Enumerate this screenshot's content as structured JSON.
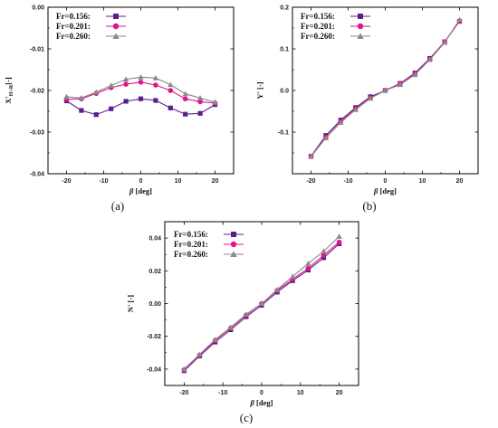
{
  "colors": {
    "fr0156": "#5b1f8c",
    "fr0201": "#e0148c",
    "fr0260": "#8a8a8a"
  },
  "chart_data": [
    {
      "type": "line",
      "panel_label": "(a)",
      "xlabel_sym": "β",
      "xlabel_unit": " [deg]",
      "ylabel_main": "X'",
      "ylabel_sub": "H+R",
      "ylabel_unit": "[-]",
      "xlim": [
        -25,
        25
      ],
      "ylim": [
        -0.04,
        0.0
      ],
      "xticks": [
        -20,
        -10,
        0,
        10,
        20
      ],
      "xtick_labels": [
        "-20",
        "-10",
        "0",
        "10",
        "20"
      ],
      "yticks": [
        -0.04,
        -0.03,
        -0.02,
        -0.01,
        0.0
      ],
      "ytick_labels": [
        "-0.04",
        "-0.03",
        "-0.02",
        "-0.01",
        "0.00"
      ],
      "legend_position": "top-left",
      "x": [
        -20,
        -16,
        -12,
        -8,
        -4,
        0,
        4,
        8,
        12,
        16,
        20
      ],
      "series": [
        {
          "name": "Fr=0.156:",
          "marker": "square",
          "values": [
            -0.0225,
            -0.0248,
            -0.0258,
            -0.0244,
            -0.0226,
            -0.022,
            -0.0224,
            -0.0242,
            -0.0257,
            -0.0255,
            -0.0234
          ]
        },
        {
          "name": "Fr=0.201:",
          "marker": "circle",
          "values": [
            -0.0221,
            -0.022,
            -0.0207,
            -0.0193,
            -0.0185,
            -0.018,
            -0.0187,
            -0.02,
            -0.022,
            -0.0227,
            -0.023
          ]
        },
        {
          "name": "Fr=0.260:",
          "marker": "triangle",
          "values": [
            -0.0215,
            -0.0218,
            -0.0204,
            -0.0188,
            -0.0173,
            -0.0168,
            -0.017,
            -0.0186,
            -0.0208,
            -0.0218,
            -0.0228
          ]
        }
      ]
    },
    {
      "type": "line",
      "panel_label": "(b)",
      "xlabel_sym": "β",
      "xlabel_unit": " [deg]",
      "ylabel_main": "Y'",
      "ylabel_sub": "",
      "ylabel_unit": "[-]",
      "xlim": [
        -25,
        25
      ],
      "ylim": [
        -0.2,
        0.2
      ],
      "xticks": [
        -20,
        -10,
        0,
        10,
        20
      ],
      "xtick_labels": [
        "-20",
        "-10",
        "0",
        "10",
        "20"
      ],
      "yticks": [
        -0.2,
        -0.1,
        0.0,
        0.1,
        0.2
      ],
      "ytick_labels": [
        "",
        "-0.1",
        "0.0",
        "0.1",
        "0.2"
      ],
      "legend_position": "top-left",
      "x": [
        -20,
        -16,
        -12,
        -8,
        -4,
        0,
        4,
        8,
        12,
        16,
        20
      ],
      "series": [
        {
          "name": "Fr=0.156:",
          "marker": "square",
          "values": [
            -0.158,
            -0.108,
            -0.071,
            -0.041,
            -0.015,
            0.0,
            0.017,
            0.042,
            0.077,
            0.117,
            0.166
          ]
        },
        {
          "name": "Fr=0.201:",
          "marker": "circle",
          "values": [
            -0.158,
            -0.113,
            -0.075,
            -0.044,
            -0.018,
            0.0,
            0.016,
            0.04,
            0.075,
            0.117,
            0.167
          ]
        },
        {
          "name": "Fr=0.260:",
          "marker": "triangle",
          "values": [
            -0.159,
            -0.114,
            -0.077,
            -0.046,
            -0.019,
            0.0,
            0.014,
            0.038,
            0.074,
            0.115,
            0.17
          ]
        }
      ]
    },
    {
      "type": "line",
      "panel_label": "(c)",
      "xlabel_sym": "β",
      "xlabel_unit": " [deg]",
      "ylabel_main": "N'",
      "ylabel_sub": "",
      "ylabel_unit": "[-]",
      "xlim": [
        -25,
        25
      ],
      "ylim": [
        -0.05,
        0.05
      ],
      "xticks": [
        -20,
        -10,
        0,
        10,
        20
      ],
      "xtick_labels": [
        "-20",
        "-10",
        "0",
        "10",
        "20"
      ],
      "yticks": [
        -0.04,
        -0.02,
        0.0,
        0.02,
        0.04
      ],
      "ytick_labels": [
        "-0.04",
        "-0.02",
        "0.00",
        "0.02",
        "0.04"
      ],
      "legend_position": "top-left",
      "x": [
        -20,
        -16,
        -12,
        -8,
        -4,
        0,
        4,
        8,
        12,
        16,
        20
      ],
      "series": [
        {
          "name": "Fr=0.156:",
          "marker": "square",
          "values": [
            -0.041,
            -0.032,
            -0.0235,
            -0.016,
            -0.008,
            -0.001,
            0.007,
            0.014,
            0.0205,
            0.028,
            0.0365
          ]
        },
        {
          "name": "Fr=0.201:",
          "marker": "circle",
          "values": [
            -0.0405,
            -0.0315,
            -0.0225,
            -0.015,
            -0.007,
            0.0,
            0.008,
            0.015,
            0.0215,
            0.0295,
            0.0375
          ]
        },
        {
          "name": "Fr=0.260:",
          "marker": "triangle",
          "values": [
            -0.04,
            -0.031,
            -0.022,
            -0.0145,
            -0.0065,
            0.0,
            0.0085,
            0.0165,
            0.0245,
            0.032,
            0.041
          ]
        }
      ]
    }
  ]
}
